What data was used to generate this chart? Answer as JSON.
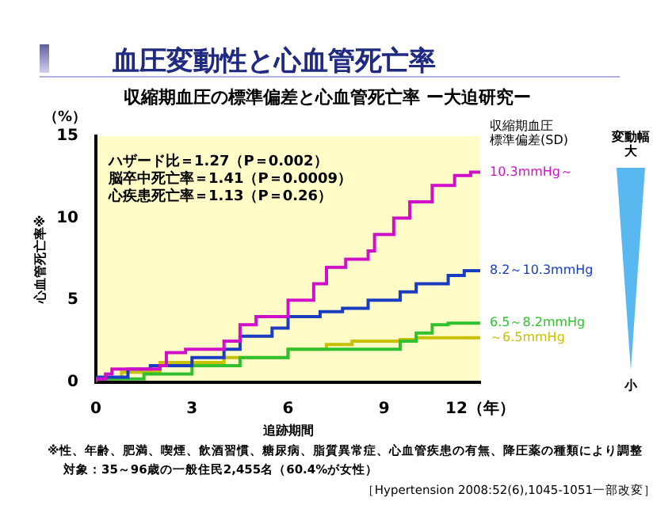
{
  "chart_data": {
    "type": "step",
    "title": "血圧変動性と心血管死亡率",
    "subtitle": "収縮期血圧の標準偏差と心血管死亡率 ー大迫研究ー",
    "xlabel": "追跡期間",
    "ylabel": "心血管死亡率※",
    "legend_title": "収縮期血圧標準偏差(SD)",
    "series": [
      {
        "name": "10.3mmHg～",
        "color": "#d010c8",
        "x": [
          0,
          0.3,
          0.5,
          2,
          2.2,
          2.8,
          4,
          4.5,
          5,
          6,
          6.8,
          7.2,
          7.8,
          8.5,
          8.7,
          9.3,
          9.8,
          10.5,
          11.2,
          11.7,
          12
        ],
        "values": [
          0,
          0.2,
          0.5,
          0.8,
          1,
          1.8,
          2,
          2.5,
          3.5,
          4,
          5,
          6,
          7,
          7.5,
          8,
          9,
          10,
          11,
          12,
          12.6,
          12.8
        ]
      },
      {
        "name": "8.2～10.3mmHg",
        "color": "#1a3cc0",
        "x": [
          0,
          1,
          1.7,
          3,
          4,
          4.5,
          5.5,
          6,
          7,
          7.7,
          8.5,
          9.5,
          10,
          11,
          11.5,
          12
        ],
        "values": [
          0,
          0.3,
          0.8,
          1,
          1.5,
          2,
          2.8,
          3.3,
          4,
          4.3,
          4.5,
          5,
          5.5,
          6,
          6.5,
          6.8
        ]
      },
      {
        "name": "6.5～8.2mmHg",
        "color": "#30c030",
        "x": [
          0,
          1.5,
          3,
          4.5,
          6,
          9.5,
          10,
          10.5,
          11,
          12
        ],
        "values": [
          0,
          0.2,
          0.5,
          1,
          1.5,
          2,
          2.5,
          3,
          3.5,
          3.6
        ]
      },
      {
        "name": "～6.5mmHg",
        "color": "#c8c000",
        "x": [
          0,
          0.8,
          2,
          4,
          6,
          7.2,
          8,
          9.5,
          10,
          12
        ],
        "values": [
          0,
          0.2,
          0.6,
          1.2,
          1.5,
          2,
          2.3,
          2.5,
          2.6,
          2.7
        ]
      }
    ],
    "xlim": [
      0,
      12
    ],
    "xticks": [
      0,
      3,
      6,
      9,
      {
        "value": 12,
        "label": "12（年）"
      }
    ],
    "ylim": [
      0,
      15
    ],
    "yticks": [
      0,
      5,
      10,
      15
    ],
    "grid": false,
    "legend": false,
    "annotations": [
      "（%）",
      "ハザード比＝1.27（P＝0.002）",
      "脳卒中死亡率＝1.41（P＝0.0009）",
      "心疾患死亡率＝1.13（P＝0.26）",
      "変動幅",
      "大",
      "小",
      "※性、年齢、肥満、喫煙、飲酒習慣、糖尿病、脂質異常症、心血管疾患の有無、降圧薬の種類により調整",
      "対象：35～96歳の一般住民2,455名（60.4%が女性）",
      "［Hypertension 2008:52(6),1045-1051一部改変］"
    ]
  }
}
